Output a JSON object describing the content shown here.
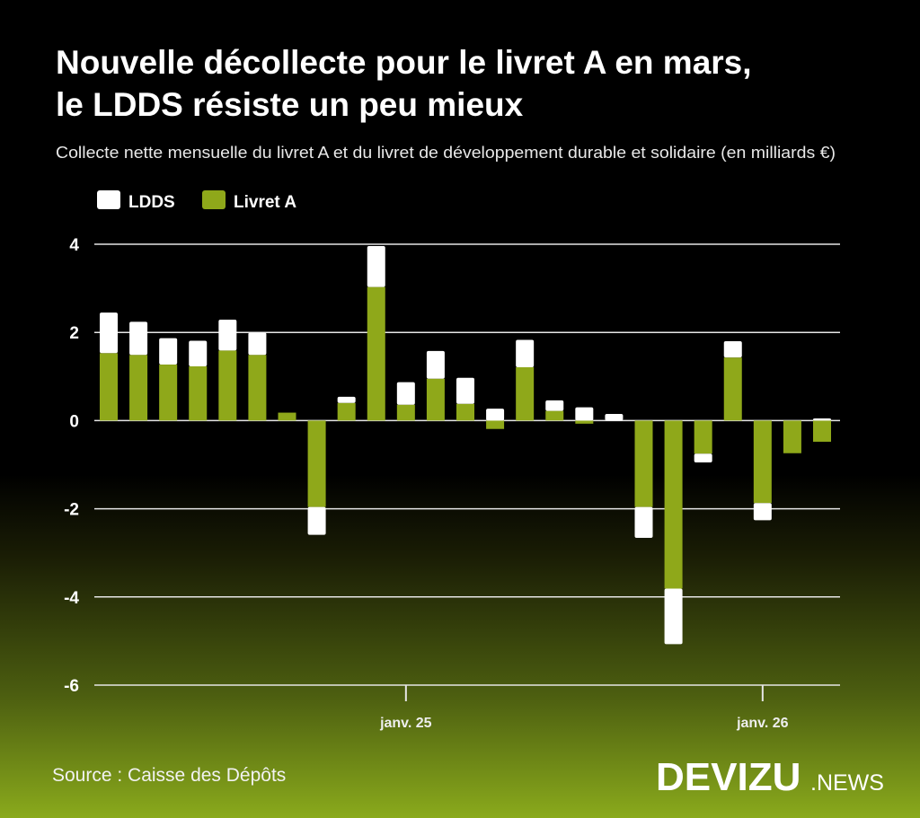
{
  "title_line1": "Nouvelle décollecte pour le livret A en mars,",
  "title_line2": "le LDDS résiste un peu mieux",
  "subtitle": "Collecte nette mensuelle du livret A et du livret de développement durable et solidaire (en milliards €)",
  "source": "Source : Caisse des Dépôts",
  "logo": {
    "main": "DEVIZU",
    "suffix": ".NEWS"
  },
  "colors": {
    "livret_a": "#8fa81a",
    "ldds": "#ffffff",
    "background_top": "#000000",
    "background_bottom": "#8aaa1c"
  },
  "chart_data": {
    "type": "bar",
    "stacked": true,
    "title": "",
    "xlabel": "",
    "ylabel": "",
    "ylim": [
      -6,
      4
    ],
    "yticks": [
      4,
      2,
      0,
      -2,
      -4,
      -6
    ],
    "grid": true,
    "legend_placement": "top-left",
    "x": [
      "2024-03",
      "2024-04",
      "2024-05",
      "2024-06",
      "2024-07",
      "2024-08",
      "2024-09",
      "2024-10",
      "2024-11",
      "2024-12",
      "2025-01",
      "2025-02",
      "2025-03",
      "2025-04",
      "2025-05",
      "2025-06",
      "2025-07",
      "2025-08",
      "2025-09",
      "2025-10",
      "2025-11",
      "2025-12",
      "2026-01",
      "2026-02",
      "2026-03"
    ],
    "xticks": [
      {
        "at": "2025-01",
        "label": "janv. 25"
      },
      {
        "at": "2026-01",
        "label": "janv. 26"
      }
    ],
    "series": [
      {
        "name": "Livret A",
        "color": "#8fa81a",
        "values": [
          1.53,
          1.49,
          1.27,
          1.23,
          1.59,
          1.49,
          0.18,
          -1.96,
          0.4,
          3.03,
          0.36,
          0.95,
          0.38,
          -0.19,
          1.21,
          0.22,
          -0.07,
          0.0,
          -1.96,
          -3.81,
          -0.75,
          1.43,
          -1.87,
          -0.74,
          -0.48
        ]
      },
      {
        "name": "LDDS",
        "color": "#ffffff",
        "values": [
          0.92,
          0.75,
          0.6,
          0.58,
          0.7,
          0.51,
          0.0,
          -0.63,
          0.14,
          0.93,
          0.51,
          0.63,
          0.59,
          0.27,
          0.62,
          0.24,
          0.3,
          0.15,
          -0.7,
          -1.26,
          -0.2,
          0.37,
          -0.39,
          0.0,
          0.05
        ]
      }
    ]
  }
}
